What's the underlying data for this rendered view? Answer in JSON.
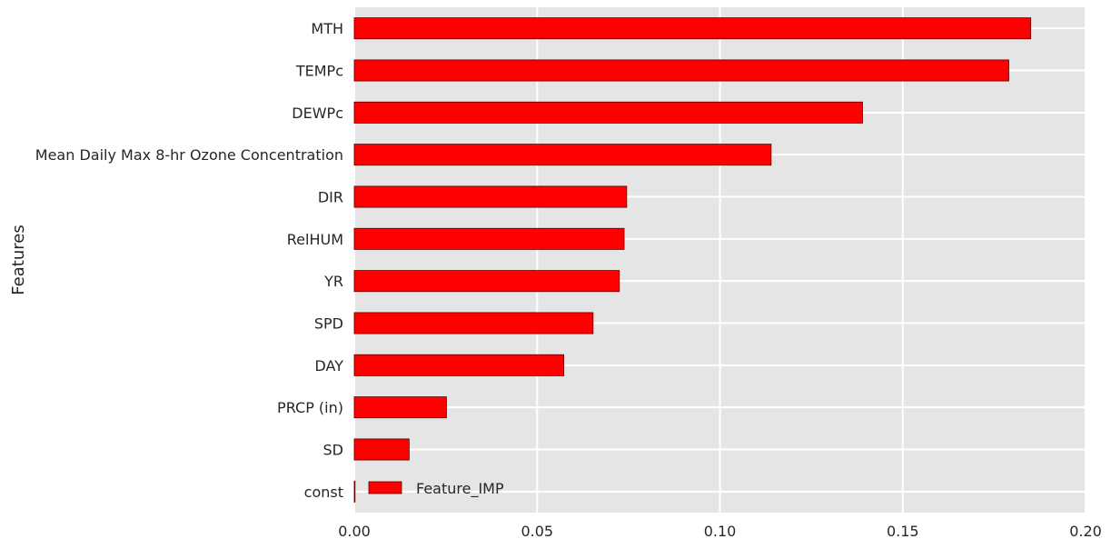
{
  "chart_data": {
    "type": "bar",
    "orientation": "horizontal",
    "ylabel": "Features",
    "xlabel": "",
    "xlim": [
      0.0,
      0.2
    ],
    "xticks": [
      "0.00",
      "0.05",
      "0.10",
      "0.15",
      "0.20"
    ],
    "grid": true,
    "legend_position": "bottom-left",
    "categories": [
      "MTH",
      "TEMPc",
      "DEWPc",
      "Mean Daily Max 8-hr Ozone Concentration",
      "DIR",
      "RelHUM",
      "YR",
      "SPD",
      "DAY",
      "PRCP (in)",
      "SD",
      "const"
    ],
    "series": [
      {
        "name": "Feature_IMP",
        "color": "#ff0000",
        "values": [
          0.185,
          0.179,
          0.139,
          0.114,
          0.0745,
          0.0738,
          0.0725,
          0.0653,
          0.0573,
          0.0252,
          0.015,
          0.0002
        ]
      }
    ],
    "background_color": "#e5e5e5",
    "grid_color": "#ffffff"
  }
}
